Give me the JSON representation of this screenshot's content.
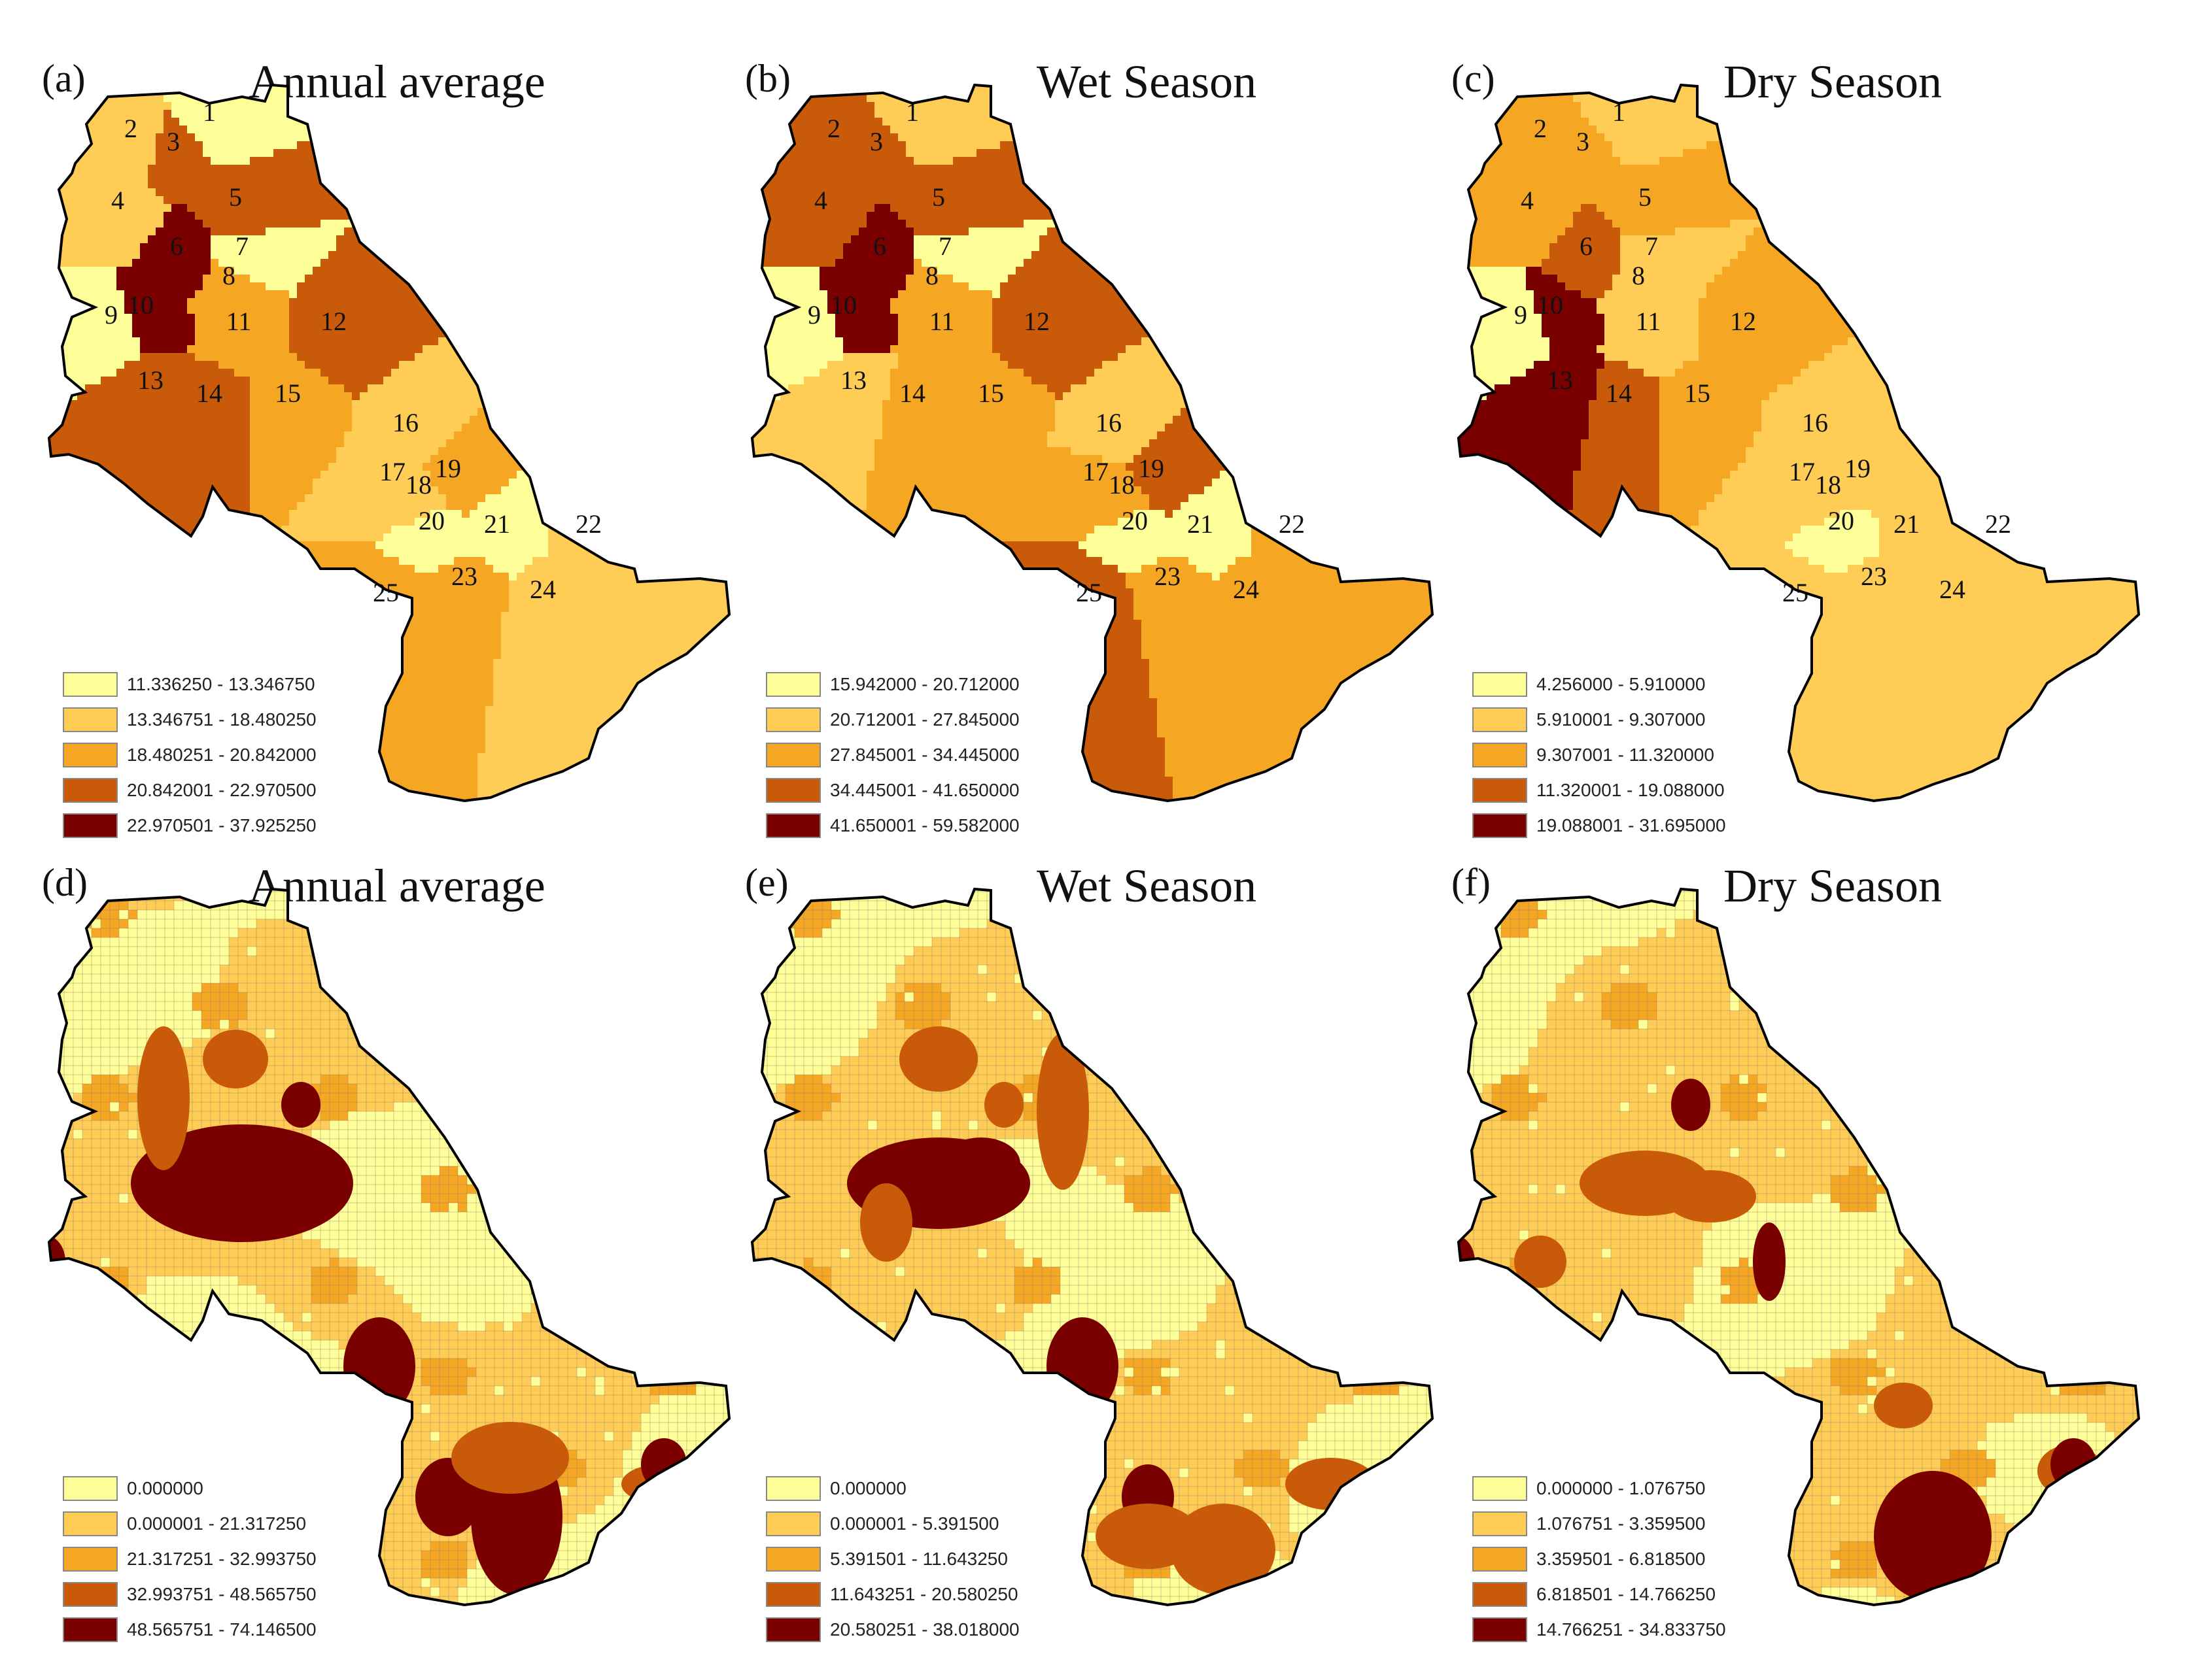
{
  "colors": {
    "class1": "#ffff99",
    "class2": "#ffcc55",
    "class3": "#f5a623",
    "class4": "#c85a0a",
    "class5": "#7a0000",
    "outline": "#000000",
    "boundary": "#8a7a6a"
  },
  "subbasin_labels": [
    "1",
    "2",
    "3",
    "4",
    "5",
    "6",
    "7",
    "8",
    "9",
    "10",
    "11",
    "12",
    "13",
    "14",
    "15",
    "16",
    "17",
    "18",
    "19",
    "20",
    "21",
    "22",
    "23",
    "24",
    "25"
  ],
  "panels": [
    {
      "letter": "(a)",
      "title": "Annual average",
      "type": "subbasin",
      "legend": [
        "11.336250 - 13.346750",
        "13.346751 - 18.480250",
        "18.480251 - 20.842000",
        "20.842001 - 22.970500",
        "22.970501 - 37.925250"
      ],
      "classes": [
        1,
        2,
        4,
        2,
        4,
        5,
        1,
        3,
        1,
        5,
        3,
        4,
        4,
        4,
        3,
        2,
        2,
        2,
        3,
        1,
        1,
        2,
        3,
        2,
        3
      ]
    },
    {
      "letter": "(b)",
      "title": "Wet Season",
      "type": "subbasin",
      "legend": [
        "15.942000 - 20.712000",
        "20.712001 - 27.845000",
        "27.845001 - 34.445000",
        "34.445001 - 41.650000",
        "41.650001 - 59.582000"
      ],
      "classes": [
        2,
        4,
        4,
        4,
        4,
        5,
        1,
        3,
        1,
        5,
        3,
        4,
        2,
        3,
        3,
        2,
        3,
        3,
        4,
        1,
        1,
        3,
        3,
        3,
        4
      ]
    },
    {
      "letter": "(c)",
      "title": "Dry Season",
      "type": "subbasin",
      "legend": [
        "4.256000 - 5.910000",
        "5.910001 - 9.307000",
        "9.307001 - 11.320000",
        "11.320001 - 19.088000",
        "19.088001 - 31.695000"
      ],
      "classes": [
        2,
        3,
        3,
        3,
        3,
        4,
        2,
        2,
        1,
        5,
        2,
        3,
        5,
        4,
        3,
        2,
        2,
        2,
        2,
        1,
        2,
        2,
        2,
        2,
        2
      ]
    },
    {
      "letter": "(d)",
      "title": "Annual average",
      "type": "hru",
      "legend": [
        "0.000000",
        "0.000001 - 21.317250",
        "21.317251 - 32.993750",
        "32.993751 - 48.565750",
        "48.565751 - 74.146500"
      ],
      "hot": [
        [
          -30,
          60,
          170,
          90,
          5
        ],
        [
          25,
          30,
          60,
          40,
          5
        ],
        [
          60,
          -60,
          30,
          35,
          5
        ],
        [
          285,
          540,
          50,
          60,
          5
        ],
        [
          180,
          340,
          55,
          75,
          5
        ],
        [
          390,
          570,
          70,
          120,
          5
        ],
        [
          380,
          480,
          90,
          55,
          4
        ],
        [
          610,
          520,
          60,
          30,
          4
        ],
        [
          615,
          490,
          35,
          40,
          5
        ],
        [
          -330,
          180,
          30,
          40,
          5
        ],
        [
          -150,
          -70,
          40,
          110,
          4
        ],
        [
          -40,
          -130,
          50,
          45,
          4
        ]
      ]
    },
    {
      "letter": "(e)",
      "title": "Wet Season",
      "type": "hru",
      "legend": [
        "0.000000",
        "0.000001 - 5.391500",
        "5.391501 - 11.643250",
        "11.643251 - 20.580250",
        "20.580251 - 38.018000"
      ],
      "hot": [
        [
          -40,
          60,
          140,
          70,
          5
        ],
        [
          25,
          30,
          60,
          40,
          5
        ],
        [
          180,
          340,
          55,
          75,
          5
        ],
        [
          280,
          540,
          40,
          50,
          5
        ],
        [
          395,
          620,
          80,
          70,
          4
        ],
        [
          280,
          600,
          80,
          50,
          4
        ],
        [
          560,
          520,
          70,
          40,
          4
        ],
        [
          -120,
          120,
          40,
          60,
          4
        ],
        [
          -40,
          -130,
          60,
          50,
          4
        ],
        [
          60,
          -60,
          30,
          35,
          4
        ],
        [
          150,
          -50,
          40,
          120,
          4
        ]
      ]
    },
    {
      "letter": "(f)",
      "title": "Dry Season",
      "type": "hru",
      "legend": [
        "0.000000 - 1.076750",
        "1.076751 - 3.359500",
        "3.359501 - 6.818500",
        "6.818501 - 14.766250",
        "14.766251 - 34.833750"
      ],
      "hot": [
        [
          -40,
          60,
          100,
          50,
          4
        ],
        [
          60,
          80,
          70,
          40,
          4
        ],
        [
          30,
          -60,
          30,
          40,
          5
        ],
        [
          150,
          180,
          25,
          60,
          5
        ],
        [
          400,
          600,
          90,
          100,
          5
        ],
        [
          610,
          500,
          50,
          40,
          4
        ],
        [
          615,
          490,
          35,
          40,
          5
        ],
        [
          -200,
          180,
          40,
          40,
          4
        ],
        [
          355,
          400,
          45,
          35,
          4
        ],
        [
          -330,
          180,
          30,
          40,
          5
        ]
      ]
    }
  ]
}
